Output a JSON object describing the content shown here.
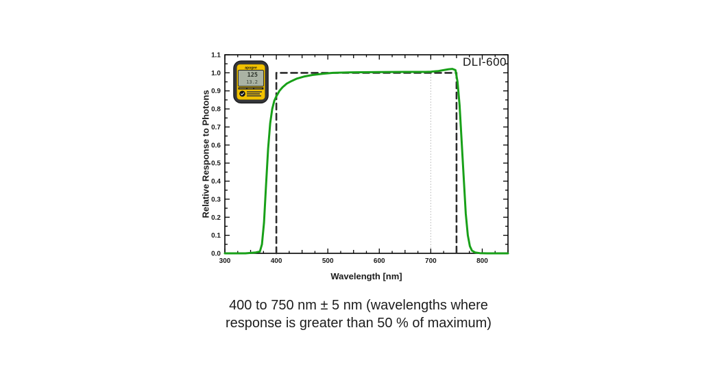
{
  "page": {
    "background": "#ffffff"
  },
  "figure": {
    "annotation_label": "DLI-600",
    "x_axis_label": "Wavelength [nm]",
    "y_axis_label": "Relative Response to Photons"
  },
  "device_meter": {
    "brand": "apogee",
    "lcd_line1": "125",
    "lcd_line2": "13.2",
    "body_color": "#35363a",
    "accent_color": "#f2c200"
  },
  "caption": {
    "line1": "400 to 750 nm ± 5 nm (wavelengths where",
    "line2": "response is greater than 50 % of maximum)"
  },
  "chart_data": {
    "type": "line",
    "title": "",
    "xlabel": "Wavelength [nm]",
    "ylabel": "Relative Response to Photons",
    "xlim": [
      300,
      850
    ],
    "ylim": [
      0,
      1.1
    ],
    "x_major_ticks": [
      300,
      400,
      500,
      600,
      700,
      800
    ],
    "x_minor_step": 25,
    "y_major_ticks": [
      0.0,
      0.1,
      0.2,
      0.3,
      0.4,
      0.5,
      0.6,
      0.7,
      0.8,
      0.9,
      1.0,
      1.1
    ],
    "y_minor_step": 0.05,
    "grid": false,
    "legend": "none",
    "annotation": "DLI-600",
    "reference_line": {
      "x": 700,
      "y_from": 0,
      "y_to": 1.0,
      "style": "dotted",
      "color": "#b3b3b3"
    },
    "series": [
      {
        "name": "ideal-response-boundary-400-750nm",
        "style": "dashed",
        "color": "#2b2b2b",
        "width": 2.6,
        "x": [
          400,
          400,
          750,
          750
        ],
        "y": [
          0,
          1.0,
          1.0,
          0
        ]
      },
      {
        "name": "dli-600-measured-response",
        "style": "solid",
        "color": "#18a018",
        "width": 3,
        "x": [
          300,
          340,
          360,
          368,
          372,
          376,
          380,
          384,
          388,
          392,
          396,
          400,
          406,
          412,
          420,
          430,
          440,
          455,
          470,
          490,
          510,
          550,
          600,
          650,
          690,
          700,
          715,
          725,
          735,
          742,
          748,
          752,
          756,
          760,
          764,
          768,
          772,
          776,
          780,
          786,
          795,
          810,
          850
        ],
        "y": [
          0,
          0,
          0.005,
          0.01,
          0.05,
          0.17,
          0.38,
          0.58,
          0.72,
          0.8,
          0.845,
          0.87,
          0.9,
          0.92,
          0.94,
          0.955,
          0.968,
          0.98,
          0.988,
          0.995,
          1.0,
          1.003,
          1.004,
          1.005,
          1.005,
          1.006,
          1.01,
          1.015,
          1.02,
          1.022,
          1.015,
          0.95,
          0.82,
          0.62,
          0.42,
          0.22,
          0.1,
          0.04,
          0.015,
          0.005,
          0.001,
          0,
          0
        ]
      }
    ]
  }
}
